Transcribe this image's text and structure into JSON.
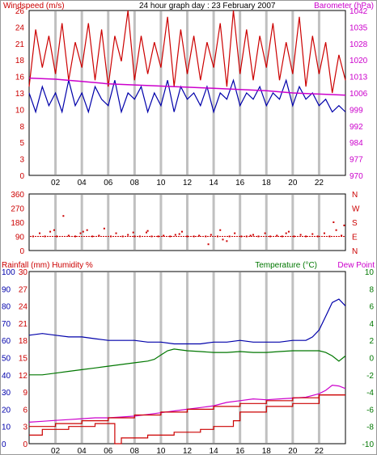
{
  "colors": {
    "windspeed": "#cc0000",
    "wind_avg": "#0000aa",
    "barometer": "#cc00cc",
    "direction": "#cc0000",
    "rainfall": "#cc0000",
    "humidity": "#0000aa",
    "temperature": "#007700",
    "dewpoint": "#cc00cc",
    "grid": "#c0c0c0",
    "axis_black": "#000000"
  },
  "chart_data": [
    {
      "type": "line",
      "title": "24 hour graph day : 23 February 2007",
      "ylabel": "Windspeed (m/s)",
      "y2label": "Barometer (hPa)",
      "x_ticks": [
        "02",
        "04",
        "06",
        "08",
        "10",
        "12",
        "14",
        "16",
        "18",
        "20",
        "22"
      ],
      "yticks": [
        "0",
        "3",
        "5",
        "8",
        "10",
        "13",
        "16",
        "18",
        "21",
        "24",
        "26"
      ],
      "y2ticks": [
        "970",
        "977",
        "984",
        "992",
        "999",
        "1006",
        "1013",
        "1020",
        "1028",
        "1035",
        "1042"
      ],
      "ylim": [
        0,
        26
      ],
      "y2lim": [
        970,
        1042
      ],
      "xlim": [
        0,
        24
      ],
      "grid": "vertical",
      "series": [
        {
          "key": "windspeed_gust",
          "axis": "left",
          "color": "windspeed",
          "x": [
            0.0,
            0.5,
            1.0,
            1.5,
            2.0,
            2.5,
            3.0,
            3.5,
            4.0,
            4.5,
            5.0,
            5.5,
            6.0,
            6.5,
            7.0,
            7.5,
            8.0,
            8.5,
            9.0,
            9.5,
            10.0,
            10.5,
            11.0,
            11.5,
            12.0,
            12.5,
            13.0,
            13.5,
            14.0,
            14.5,
            15.0,
            15.5,
            16.0,
            16.5,
            17.0,
            17.5,
            18.0,
            18.5,
            19.0,
            19.5,
            20.0,
            20.5,
            21.0,
            21.5,
            22.0,
            22.5,
            23.0,
            23.5,
            24.0
          ],
          "values": [
            14,
            23,
            17,
            22,
            16,
            24,
            15,
            21,
            17,
            24,
            15,
            23,
            14,
            22,
            18,
            26,
            15,
            22,
            16,
            21,
            17,
            25,
            14,
            23,
            16,
            22,
            15,
            21,
            17,
            24,
            14,
            26,
            16,
            23,
            15,
            22,
            17,
            24,
            15,
            21,
            16,
            25,
            14,
            22,
            16,
            21,
            13,
            19,
            15
          ]
        },
        {
          "key": "windspeed_avg",
          "axis": "left",
          "color": "wind_avg",
          "x": [
            0.0,
            0.5,
            1.0,
            1.5,
            2.0,
            2.5,
            3.0,
            3.5,
            4.0,
            4.5,
            5.0,
            5.5,
            6.0,
            6.5,
            7.0,
            7.5,
            8.0,
            8.5,
            9.0,
            9.5,
            10.0,
            10.5,
            11.0,
            11.5,
            12.0,
            12.5,
            13.0,
            13.5,
            14.0,
            14.5,
            15.0,
            15.5,
            16.0,
            16.5,
            17.0,
            17.5,
            18.0,
            18.5,
            19.0,
            19.5,
            20.0,
            20.5,
            21.0,
            21.5,
            22.0,
            22.5,
            23.0,
            23.5,
            24.0
          ],
          "values": [
            13,
            10,
            14,
            11,
            13,
            10,
            15,
            11,
            13,
            10,
            14,
            12,
            11,
            15,
            10,
            13,
            12,
            14,
            10,
            13,
            11,
            15,
            10,
            14,
            12,
            13,
            11,
            14,
            10,
            13,
            12,
            15,
            11,
            13,
            12,
            14,
            11,
            13,
            12,
            15,
            11,
            14,
            12,
            13,
            11,
            12,
            10,
            11,
            10
          ]
        },
        {
          "key": "barometer",
          "axis": "right",
          "color": "barometer",
          "x": [
            0,
            2,
            4,
            6,
            8,
            10,
            12,
            14,
            16,
            18,
            20,
            22,
            24
          ],
          "values": [
            1012.5,
            1012,
            1011,
            1010,
            1009.5,
            1009,
            1008.5,
            1008,
            1007.5,
            1007,
            1006,
            1005.5,
            1005
          ]
        }
      ]
    },
    {
      "type": "scatter",
      "title": "",
      "yticks": [
        "360",
        "270",
        "180",
        "90",
        "0"
      ],
      "y2ticks": [
        "N",
        "W",
        "S",
        "E",
        "N"
      ],
      "ylim": [
        0,
        360
      ],
      "xlim": [
        0,
        24
      ],
      "series": [
        {
          "key": "direction",
          "color": "direction",
          "x": [
            0.3,
            0.8,
            1.2,
            1.6,
            2.1,
            2.6,
            3.0,
            3.5,
            3.9,
            4.4,
            4.8,
            5.3,
            5.7,
            6.2,
            6.6,
            7.1,
            7.5,
            8.0,
            8.4,
            8.9,
            9.3,
            9.8,
            10.2,
            10.7,
            11.1,
            11.6,
            12.0,
            12.5,
            12.9,
            13.4,
            13.8,
            14.3,
            14.7,
            15.2,
            15.6,
            16.1,
            16.5,
            17.0,
            17.4,
            17.9,
            18.3,
            18.8,
            19.2,
            19.7,
            20.1,
            20.6,
            21.0,
            21.5,
            21.9,
            22.4,
            22.8,
            23.3,
            23.7,
            1.9,
            7.9,
            13.6,
            14.5,
            15.0,
            23.1,
            23.9,
            11.4,
            19.5,
            4.1,
            9.0,
            16.8
          ],
          "values": [
            90,
            110,
            90,
            120,
            90,
            220,
            95,
            90,
            110,
            130,
            90,
            95,
            140,
            90,
            110,
            90,
            100,
            90,
            90,
            115,
            90,
            90,
            95,
            90,
            100,
            120,
            90,
            90,
            95,
            90,
            100,
            90,
            70,
            90,
            110,
            90,
            90,
            100,
            90,
            110,
            90,
            95,
            90,
            120,
            90,
            100,
            90,
            105,
            90,
            110,
            90,
            130,
            95,
            130,
            115,
            40,
            130,
            60,
            180,
            160,
            105,
            110,
            120,
            125,
            95
          ]
        }
      ]
    },
    {
      "type": "line",
      "title": "",
      "ylabel": "Rainfall (mm) Humidity %",
      "y2label": "Temperature (°C)",
      "y2label_extra": "Dew Point",
      "x_ticks": [
        "02",
        "04",
        "06",
        "08",
        "10",
        "12",
        "14",
        "16",
        "18",
        "20",
        "22"
      ],
      "yticks_rain": [
        "0",
        "3",
        "6",
        "9",
        "12",
        "15",
        "18",
        "21",
        "24",
        "27",
        "30"
      ],
      "yticks_hum": [
        "0",
        "10",
        "20",
        "30",
        "40",
        "50",
        "60",
        "70",
        "80",
        "90",
        "100"
      ],
      "y2ticks": [
        "-10",
        "-8",
        "-6",
        "-4",
        "-2",
        "0",
        "2",
        "4",
        "6",
        "8",
        "10"
      ],
      "ylim": [
        0,
        30
      ],
      "y2lim": [
        -10,
        10
      ],
      "xlim": [
        0,
        24
      ],
      "series": [
        {
          "key": "humidity",
          "axis": "hum",
          "color": "humidity",
          "x": [
            0,
            1,
            2,
            3,
            4,
            5,
            6,
            7,
            8,
            9,
            10,
            11,
            12,
            13,
            14,
            15,
            16,
            17,
            18,
            19,
            20,
            21,
            21.5,
            22,
            22.5,
            23,
            23.5,
            24
          ],
          "values": [
            63,
            64,
            63,
            62,
            62,
            61,
            60,
            60,
            60,
            59,
            59,
            58,
            58,
            58,
            59,
            59,
            60,
            59,
            59,
            59,
            60,
            60,
            62,
            66,
            74,
            82,
            84,
            80
          ]
        },
        {
          "key": "temperature",
          "axis": "temp",
          "color": "temperature",
          "x": [
            0,
            1,
            2,
            3,
            4,
            5,
            6,
            7,
            8,
            9,
            9.5,
            10,
            10.5,
            11,
            12,
            13,
            14,
            15,
            16,
            17,
            18,
            19,
            20,
            21,
            22,
            22.5,
            23,
            23.5,
            24
          ],
          "values": [
            -2,
            -2,
            -1.8,
            -1.6,
            -1.4,
            -1.2,
            -1,
            -0.8,
            -0.6,
            -0.4,
            -0.2,
            0.3,
            0.8,
            1.0,
            0.8,
            0.7,
            0.6,
            0.6,
            0.7,
            0.6,
            0.6,
            0.7,
            0.8,
            0.8,
            0.8,
            0.6,
            0.2,
            -0.4,
            0.2
          ]
        },
        {
          "key": "dewpoint",
          "axis": "temp",
          "color": "dewpoint",
          "x": [
            0,
            1,
            2,
            3,
            4,
            5,
            6,
            7,
            8,
            9,
            10,
            11,
            12,
            13,
            14,
            15,
            16,
            17,
            18,
            19,
            20,
            21,
            22,
            22.5,
            23,
            23.5,
            24
          ],
          "values": [
            -7.5,
            -7.4,
            -7.3,
            -7.2,
            -7.1,
            -7,
            -7,
            -6.9,
            -6.8,
            -6.6,
            -6.4,
            -6.2,
            -6,
            -5.8,
            -5.6,
            -5.2,
            -5,
            -4.8,
            -4.9,
            -4.8,
            -4.7,
            -4.6,
            -4.2,
            -3.8,
            -3.2,
            -3.3,
            -3.6
          ]
        },
        {
          "key": "rainfall_a",
          "axis": "rain",
          "color": "rainfall",
          "x": [
            0,
            1,
            1,
            3,
            3,
            5,
            5,
            6.5,
            6.5,
            7,
            7,
            9,
            9,
            11,
            11,
            13,
            13,
            14,
            14,
            15.5,
            15.5,
            16,
            16,
            18,
            18,
            20,
            20,
            22,
            22,
            24
          ],
          "values": [
            1.5,
            1.5,
            2.5,
            2.5,
            3,
            3,
            3.5,
            3.5,
            0,
            0,
            1,
            1,
            1.5,
            1.5,
            2,
            2,
            2.5,
            2.5,
            3,
            3,
            4,
            4,
            5.5,
            5.5,
            6.5,
            6.5,
            7,
            7,
            8.5,
            8.5
          ]
        },
        {
          "key": "rainfall_b",
          "axis": "rain",
          "color": "rainfall",
          "x": [
            0,
            2,
            2,
            4,
            4,
            6,
            6,
            8,
            8,
            10,
            10,
            12,
            12,
            14,
            14,
            16,
            16,
            18,
            18,
            20,
            20,
            22,
            22,
            24
          ],
          "values": [
            3,
            3,
            3.5,
            3.5,
            4,
            4,
            4.5,
            4.5,
            5,
            5,
            5.5,
            5.5,
            6,
            6,
            6.5,
            6.5,
            7,
            7,
            7.5,
            7.5,
            8,
            8,
            8.5,
            8.5
          ]
        }
      ]
    }
  ]
}
